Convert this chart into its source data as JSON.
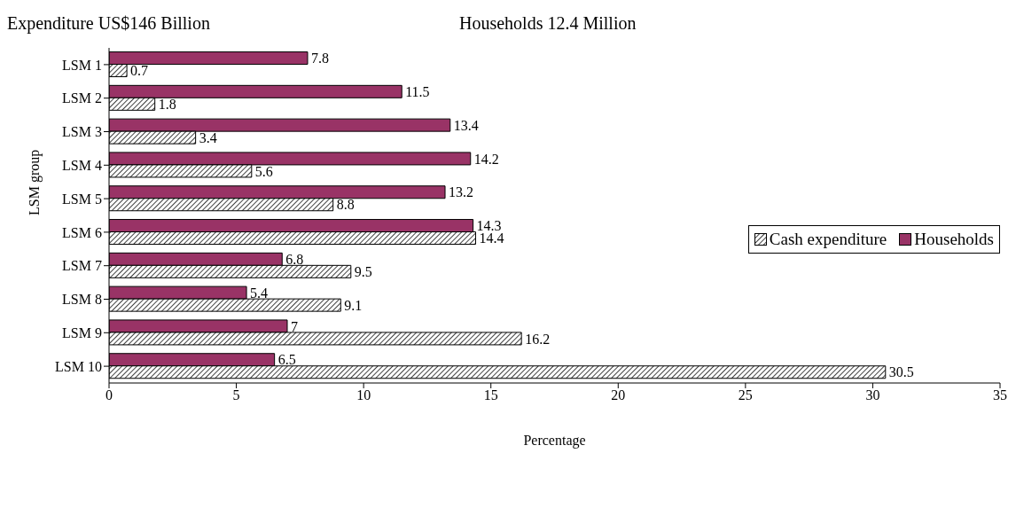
{
  "chart_data": {
    "type": "bar",
    "orientation": "horizontal",
    "title": "Expenditure US$146 Billion",
    "subtitle": "Households 12.4 Million",
    "xlabel": "Percentage",
    "ylabel": "LSM group",
    "categories": [
      "LSM 1",
      "LSM 2",
      "LSM 3",
      "LSM 4",
      "LSM 5",
      "LSM 6",
      "LSM 7",
      "LSM 8",
      "LSM 9",
      "LSM 10"
    ],
    "series": [
      {
        "name": "Households",
        "color": "#993366",
        "values": [
          7.8,
          11.5,
          13.4,
          14.2,
          13.2,
          14.3,
          6.8,
          5.4,
          7,
          6.5
        ]
      },
      {
        "name": "Cash expenditure",
        "color": "#000000",
        "values": [
          0.7,
          1.8,
          3.4,
          5.6,
          8.8,
          14.4,
          9.5,
          9.1,
          16.2,
          30.5
        ]
      }
    ],
    "xlim": [
      0,
      35
    ],
    "xticks": [
      0,
      5,
      10,
      15,
      20,
      25,
      30,
      35
    ],
    "data_labels": true,
    "legend": "right",
    "grid": false
  }
}
